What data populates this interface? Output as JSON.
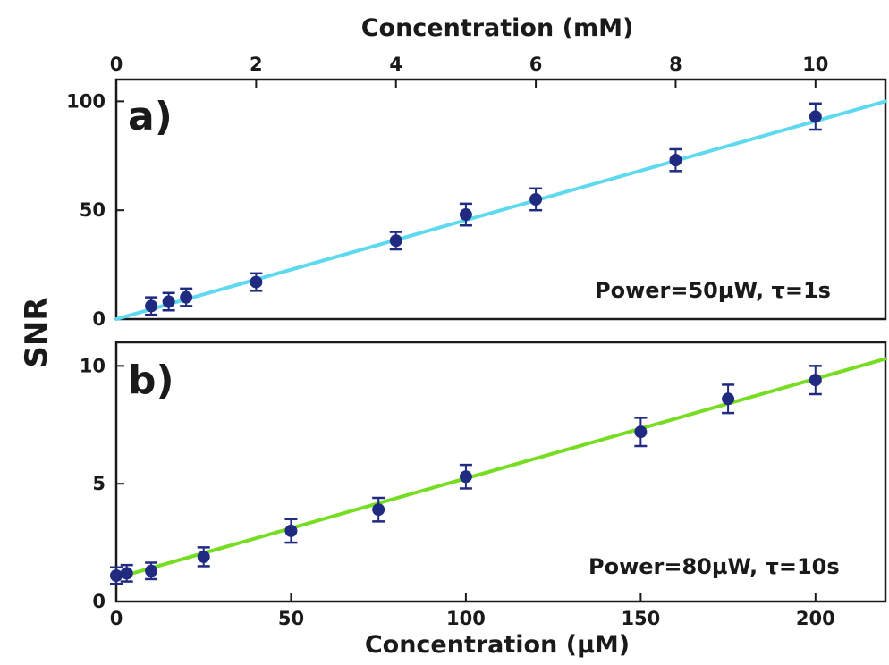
{
  "chart_data": [
    {
      "id": "a",
      "type": "scatter",
      "panel_label": "a)",
      "annotation": "Power=50µW, τ=1s",
      "xlabel": "Concentration (mM)",
      "xlabel_position": "top",
      "ylabel": "SNR",
      "xlim": [
        0,
        11
      ],
      "ylim": [
        0,
        110
      ],
      "xticks": [
        0,
        2,
        4,
        6,
        8,
        10
      ],
      "yticks": [
        0,
        50,
        100
      ],
      "grid": false,
      "series": [
        {
          "x": [
            0.5,
            0.75,
            1.0,
            2.0,
            4.0,
            5.0,
            6.0,
            8.0,
            10.0
          ],
          "y": [
            6,
            8,
            10,
            17,
            36,
            48,
            55,
            73,
            93
          ],
          "yerr": [
            4,
            4,
            4,
            4,
            4,
            5,
            5,
            5,
            6
          ],
          "color": "#1f2a80"
        }
      ],
      "fit_line": {
        "x": [
          0,
          11
        ],
        "y": [
          0,
          100
        ],
        "color": "#5fd9ee"
      }
    },
    {
      "id": "b",
      "type": "scatter",
      "panel_label": "b)",
      "annotation": "Power=80µW, τ=10s",
      "xlabel": "Concentration (µM)",
      "xlabel_position": "bottom",
      "ylabel": "SNR",
      "xlim": [
        0,
        220
      ],
      "ylim": [
        0,
        11
      ],
      "xticks": [
        0,
        50,
        100,
        150,
        200
      ],
      "yticks": [
        0,
        5,
        10
      ],
      "grid": false,
      "series": [
        {
          "x": [
            0,
            3,
            10,
            25,
            50,
            75,
            100,
            150,
            175,
            200
          ],
          "y": [
            1.1,
            1.2,
            1.3,
            1.9,
            3.0,
            3.9,
            5.3,
            7.2,
            8.6,
            9.4
          ],
          "yerr": [
            0.35,
            0.35,
            0.35,
            0.4,
            0.5,
            0.5,
            0.5,
            0.6,
            0.6,
            0.6
          ],
          "color": "#1f2a80"
        }
      ],
      "fit_line": {
        "x": [
          0,
          220
        ],
        "y": [
          1.0,
          10.3
        ],
        "color": "#77dd22"
      }
    }
  ]
}
